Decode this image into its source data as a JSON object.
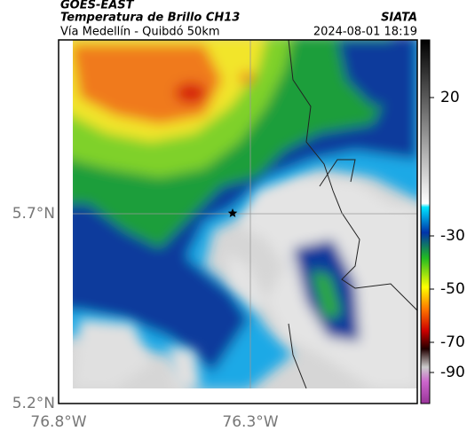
{
  "header": {
    "source": "GOES-EAST",
    "product": "Temperatura de Brillo CH13",
    "brand": "SIATA",
    "region": "Vía Medellín - Quibdó 50km",
    "timestamp": "2024-08-01 18:19"
  },
  "map": {
    "lat_labels": [
      "5.7°N",
      "5.2°N"
    ],
    "lon_labels": [
      "76.8°W",
      "76.3°W"
    ]
  },
  "colorbar": {
    "ticks": [
      20,
      -30,
      -50,
      -70,
      -90
    ]
  }
}
